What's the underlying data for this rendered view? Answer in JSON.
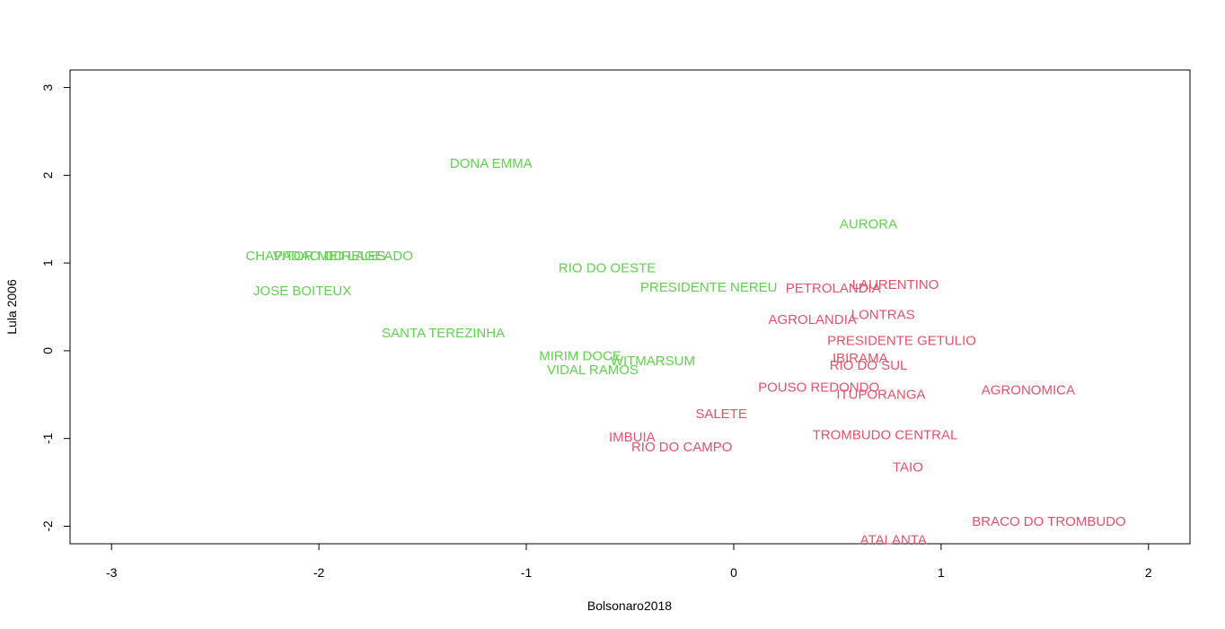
{
  "chart_data": {
    "type": "scatter",
    "title": "",
    "xlabel": "Bolsonaro2018",
    "ylabel": "Lula 2006",
    "xlim": [
      -3.2,
      2.2
    ],
    "ylim": [
      -2.2,
      3.2
    ],
    "xticks": [
      -3,
      -2,
      -1,
      0,
      1,
      2
    ],
    "yticks": [
      -2,
      -1,
      0,
      1,
      2,
      3
    ],
    "xtick_labels": [
      "-3",
      "-2",
      "-1",
      "0",
      "1",
      "2"
    ],
    "ytick_labels": [
      "-2",
      "-1",
      "0",
      "1",
      "2",
      "3"
    ],
    "grid": false,
    "legend": "none",
    "colors": {
      "green": "#61D04F",
      "red": "#DF536B"
    },
    "points": [
      {
        "label": "DONA EMMA",
        "x": -1.17,
        "y": 2.13,
        "color": "green"
      },
      {
        "label": "AURORA",
        "x": 0.65,
        "y": 1.44,
        "color": "green"
      },
      {
        "label": "CHAPADAO DO LAGEADO",
        "x": -1.95,
        "y": 1.08,
        "color": "green"
      },
      {
        "label": "VITOR MEIRELES",
        "x": -1.95,
        "y": 1.08,
        "color": "green"
      },
      {
        "label": "RIO DO OESTE",
        "x": -0.61,
        "y": 0.94,
        "color": "green"
      },
      {
        "label": "JOSE BOITEUX",
        "x": -2.08,
        "y": 0.68,
        "color": "green"
      },
      {
        "label": "PRESIDENTE NEREU",
        "x": -0.12,
        "y": 0.72,
        "color": "green"
      },
      {
        "label": "SANTA TEREZINHA",
        "x": -1.4,
        "y": 0.2,
        "color": "green"
      },
      {
        "label": "MIRIM DOCE",
        "x": -0.74,
        "y": -0.06,
        "color": "green"
      },
      {
        "label": "WITMARSUM",
        "x": -0.39,
        "y": -0.12,
        "color": "green"
      },
      {
        "label": "VIDAL RAMOS",
        "x": -0.68,
        "y": -0.22,
        "color": "green"
      },
      {
        "label": "LAURENTINO",
        "x": 0.78,
        "y": 0.75,
        "color": "red"
      },
      {
        "label": "PETROLANDIA",
        "x": 0.48,
        "y": 0.71,
        "color": "red"
      },
      {
        "label": "LONTRAS",
        "x": 0.72,
        "y": 0.41,
        "color": "red"
      },
      {
        "label": "AGROLANDIA",
        "x": 0.38,
        "y": 0.35,
        "color": "red"
      },
      {
        "label": "PRESIDENTE GETULIO",
        "x": 0.81,
        "y": 0.11,
        "color": "red"
      },
      {
        "label": "IBIRAMA",
        "x": 0.61,
        "y": -0.09,
        "color": "red"
      },
      {
        "label": "RIO DO SUL",
        "x": 0.65,
        "y": -0.17,
        "color": "red"
      },
      {
        "label": "POUSO REDONDO",
        "x": 0.41,
        "y": -0.42,
        "color": "red"
      },
      {
        "label": "ITUPORANGA",
        "x": 0.71,
        "y": -0.5,
        "color": "red"
      },
      {
        "label": "AGRONOMICA",
        "x": 1.42,
        "y": -0.45,
        "color": "red"
      },
      {
        "label": "SALETE",
        "x": -0.06,
        "y": -0.72,
        "color": "red"
      },
      {
        "label": "TROMBUDO CENTRAL",
        "x": 0.73,
        "y": -0.96,
        "color": "red"
      },
      {
        "label": "IMBUIA",
        "x": -0.49,
        "y": -0.99,
        "color": "red"
      },
      {
        "label": "RIO DO CAMPO",
        "x": -0.25,
        "y": -1.1,
        "color": "red"
      },
      {
        "label": "TAIO",
        "x": 0.84,
        "y": -1.33,
        "color": "red"
      },
      {
        "label": "BRACO DO TROMBUDO",
        "x": 1.52,
        "y": -1.95,
        "color": "red"
      },
      {
        "label": "ATALANTA",
        "x": 0.77,
        "y": -2.16,
        "color": "red"
      }
    ]
  }
}
